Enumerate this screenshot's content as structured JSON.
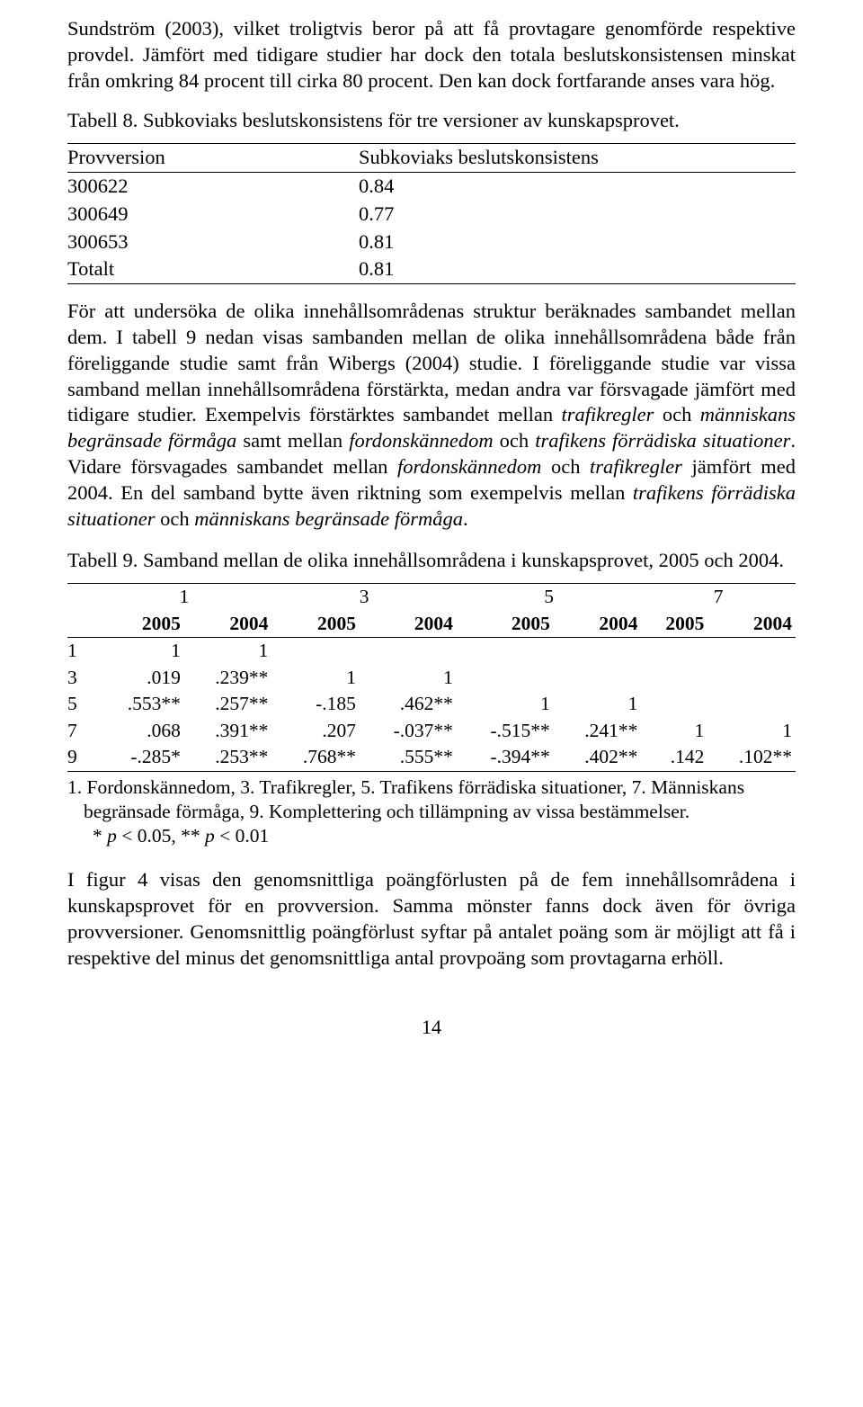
{
  "para1": "Sundström (2003), vilket troligtvis beror på att få provtagare genomförde respektive provdel. Jämfört med tidigare studier har dock den totala beslutskonsistensen minskat från omkring 84 procent till cirka 80 procent. Den kan dock fortfarande anses vara hög.",
  "table8": {
    "caption": "Tabell 8. Subkoviaks beslutskonsistens för tre versioner av kunskapsprovet.",
    "headers": [
      "Provversion",
      "Subkoviaks beslutskonsistens"
    ],
    "rows": [
      [
        "300622",
        "0.84"
      ],
      [
        "300649",
        "0.77"
      ],
      [
        "300653",
        "0.81"
      ],
      [
        "Totalt",
        "0.81"
      ]
    ]
  },
  "para2_parts": {
    "a": "För att undersöka de olika innehållsområdenas struktur beräknades sambandet mellan dem. I tabell 9 nedan visas sambanden mellan de olika innehållsområdena både från föreliggande studie samt från Wibergs (2004) studie. I föreliggande studie var vissa samband mellan innehållsområdena förstärkta, medan andra var försvagade jämfört med tidigare studier. Exempelvis förstärktes sambandet mellan ",
    "i1": "trafikregler",
    "b": " och ",
    "i2": "människans begränsade förmåga",
    "c": " samt mellan ",
    "i3": "fordonskännedom",
    "d": " och ",
    "i4": "trafikens förrädiska situationer",
    "e": ". Vidare försvagades sambandet mellan ",
    "i5": "fordonskännedom",
    "f": " och ",
    "i6": "trafikregler",
    "g": " jämfört med 2004. En del samband bytte även riktning som exempelvis mellan ",
    "i7": "trafikens förrädiska situationer",
    "h": " och ",
    "i8": "människans begränsade förmåga",
    "j": "."
  },
  "table9": {
    "caption": "Tabell 9. Samband mellan de olika innehållsområdena i kunskapsprovet, 2005 och 2004.",
    "group_headers": [
      "1",
      "3",
      "5",
      "7"
    ],
    "year_headers": [
      "2005",
      "2004",
      "2005",
      "2004",
      "2005",
      "2004",
      "2005",
      "2004"
    ],
    "rows": [
      {
        "label": "1",
        "cells": [
          "1",
          "1",
          "",
          "",
          "",
          "",
          "",
          ""
        ]
      },
      {
        "label": "3",
        "cells": [
          ".019",
          ".239**",
          "1",
          "1",
          "",
          "",
          "",
          ""
        ]
      },
      {
        "label": "5",
        "cells": [
          ".553**",
          ".257**",
          "-.185",
          ".462**",
          "1",
          "1",
          "",
          ""
        ]
      },
      {
        "label": "7",
        "cells": [
          ".068",
          ".391**",
          ".207",
          "-.037**",
          "-.515**",
          ".241**",
          "1",
          "1"
        ]
      },
      {
        "label": "9",
        "cells": [
          "-.285*",
          ".253**",
          ".768**",
          ".555**",
          "-.394**",
          ".402**",
          ".142",
          ".102**"
        ]
      }
    ],
    "note1": "1. Fordonskännedom, 3. Trafikregler, 5. Trafikens förrädiska situationer, 7. Människans begränsade förmåga, 9. Komplettering och tillämpning av vissa bestämmelser.",
    "note2_a": "* ",
    "note2_i1": "p",
    "note2_b": " < 0.05, ** ",
    "note2_i2": "p",
    "note2_c": " < 0.01"
  },
  "para3": "I figur 4 visas den genomsnittliga poängförlusten på de fem innehållsområdena i kunskapsprovet för en provversion. Samma mönster fanns dock även för övriga provversioner. Genomsnittlig poängförlust syftar på antalet poäng som är möjligt att få i respektive del minus det genomsnittliga antal provpoäng som provtagarna erhöll.",
  "page_number": "14"
}
